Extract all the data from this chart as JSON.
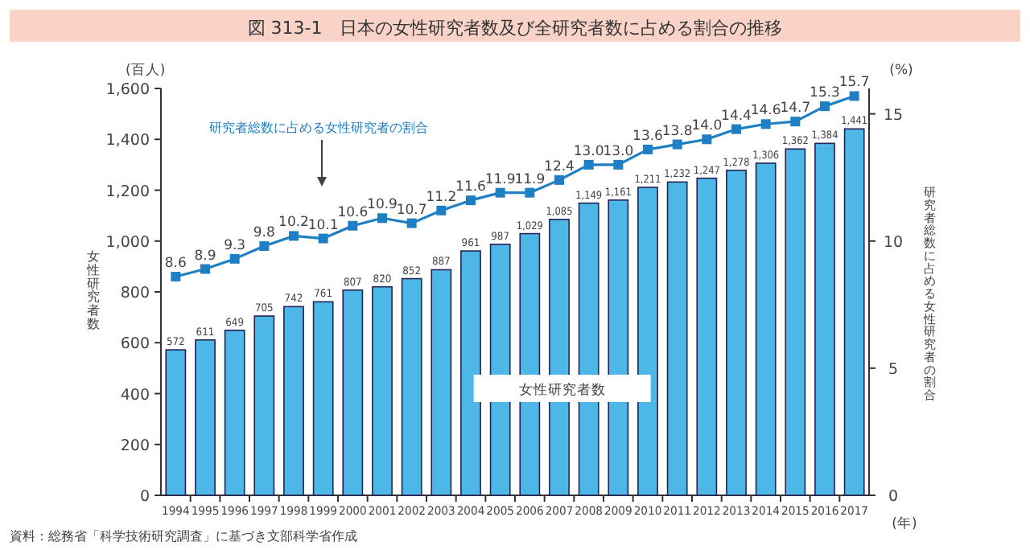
{
  "chart_data": {
    "type": "bar",
    "title": "図 313-1　日本の女性研究者数及び全研究者数に占める割合の推移",
    "categories": [
      "1994",
      "1995",
      "1996",
      "1997",
      "1998",
      "1999",
      "2000",
      "2001",
      "2002",
      "2003",
      "2004",
      "2005",
      "2006",
      "2007",
      "2008",
      "2009",
      "2010",
      "2011",
      "2012",
      "2013",
      "2014",
      "2015",
      "2016",
      "2017"
    ],
    "series": [
      {
        "name": "女性研究者数",
        "color": "#4db8e8",
        "values": [
          572,
          611,
          649,
          705,
          742,
          761,
          807,
          820,
          852,
          887,
          961,
          987,
          1029,
          1085,
          1149,
          1161,
          1211,
          1232,
          1247,
          1278,
          1306,
          1362,
          1384,
          1441
        ],
        "value_labels": [
          "572",
          "611",
          "649",
          "705",
          "742",
          "761",
          "807",
          "820",
          "852",
          "887",
          "961",
          "987",
          "1,029",
          "1,085",
          "1,149",
          "1,161",
          "1,211",
          "1,232",
          "1,247",
          "1,278",
          "1,306",
          "1,362",
          "1,384",
          "1,441"
        ]
      },
      {
        "name": "研究者総数に占める女性研究者の割合",
        "type": "line",
        "axis": "y2",
        "color": "#1f7fc4",
        "values": [
          8.6,
          8.9,
          9.3,
          9.8,
          10.2,
          10.1,
          10.6,
          10.9,
          10.7,
          11.2,
          11.6,
          11.9,
          11.9,
          12.4,
          13.0,
          13.0,
          13.6,
          13.8,
          14.0,
          14.4,
          14.6,
          14.7,
          15.3,
          15.7
        ],
        "value_labels": [
          "8.6",
          "8.9",
          "9.3",
          "9.8",
          "10.2",
          "10.1",
          "10.6",
          "10.9",
          "10.7",
          "11.2",
          "11.6",
          "11.9",
          "11.9",
          "12.4",
          "13.0",
          "13.0",
          "13.6",
          "13.8",
          "14.0",
          "14.4",
          "14.6",
          "14.7",
          "15.3",
          "15.7"
        ]
      }
    ],
    "ylabel": "女性研究者数",
    "y2label": "研究者総数に占める女性研究者の割合",
    "ylim": [
      0,
      1600
    ],
    "yticks": [
      0,
      {
        "value": 200,
        "label": "200"
      },
      {
        "value": 400,
        "label": "400"
      },
      {
        "value": 600,
        "label": "600"
      },
      {
        "value": 800,
        "label": "800"
      },
      {
        "value": 1000,
        "label": "1,000"
      },
      {
        "value": 1200,
        "label": "1,200"
      },
      {
        "value": 1400,
        "label": "1,400"
      },
      {
        "value": 1600,
        "label": "1,600"
      }
    ],
    "y2lim": [
      0,
      16
    ],
    "y2ticks": [
      0,
      5,
      10,
      15
    ],
    "marker": "square",
    "legend": false,
    "grid": false,
    "annotations": [
      "(百人)",
      "(%)",
      "(年)",
      "資料：総務省「科学技術研究調査」に基づき文部科学省作成"
    ]
  }
}
